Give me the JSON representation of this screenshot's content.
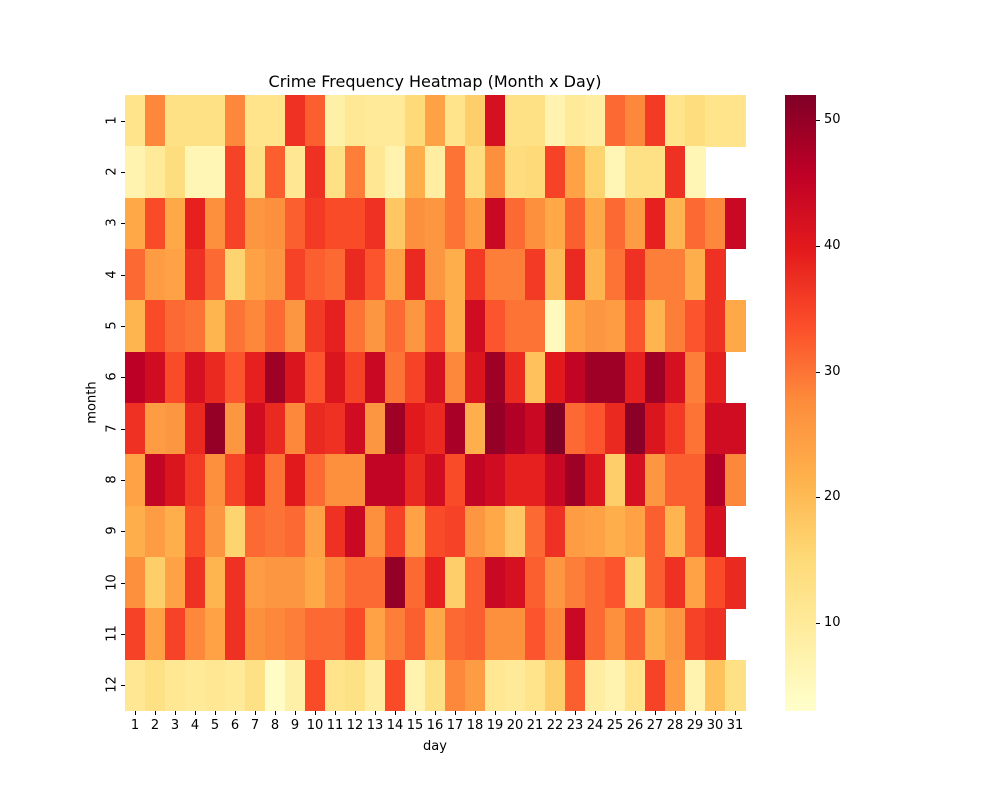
{
  "chart_data": {
    "type": "heatmap",
    "title": "Crime Frequency Heatmap (Month x Day)",
    "xlabel": "day",
    "ylabel": "month",
    "x_categories": [
      "1",
      "2",
      "3",
      "4",
      "5",
      "6",
      "7",
      "8",
      "9",
      "10",
      "11",
      "12",
      "13",
      "14",
      "15",
      "16",
      "17",
      "18",
      "19",
      "20",
      "21",
      "22",
      "23",
      "24",
      "25",
      "26",
      "27",
      "28",
      "29",
      "30",
      "31"
    ],
    "y_categories": [
      "1",
      "2",
      "3",
      "4",
      "5",
      "6",
      "7",
      "8",
      "9",
      "10",
      "11",
      "12"
    ],
    "colormap": "YlOrRd",
    "vmin": 3,
    "vmax": 52,
    "colorbar_ticks": [
      10,
      20,
      30,
      40,
      50
    ],
    "values": [
      [
        12,
        28,
        13,
        13,
        13,
        28,
        12,
        12,
        37,
        32,
        8,
        11,
        10,
        10,
        15,
        24,
        12,
        17,
        42,
        13,
        13,
        7,
        10,
        9,
        31,
        28,
        36,
        12,
        14,
        12,
        12
      ],
      [
        7,
        10,
        14,
        6,
        6,
        35,
        13,
        32,
        11,
        37,
        13,
        29,
        11,
        7,
        22,
        9,
        30,
        14,
        27,
        14,
        15,
        35,
        24,
        16,
        6,
        13,
        13,
        37,
        6,
        null,
        null
      ],
      [
        23,
        34,
        23,
        39,
        27,
        35,
        26,
        27,
        32,
        36,
        34,
        34,
        37,
        18,
        27,
        26,
        30,
        25,
        44,
        31,
        27,
        23,
        32,
        23,
        31,
        25,
        39,
        21,
        31,
        28,
        44
      ],
      [
        31,
        25,
        24,
        37,
        31,
        16,
        24,
        26,
        35,
        32,
        31,
        38,
        33,
        24,
        38,
        26,
        22,
        36,
        29,
        29,
        36,
        20,
        38,
        21,
        30,
        37,
        29,
        29,
        22,
        37,
        null
      ],
      [
        21,
        34,
        31,
        30,
        21,
        30,
        28,
        31,
        26,
        36,
        39,
        30,
        26,
        31,
        26,
        33,
        22,
        43,
        33,
        30,
        30,
        5,
        24,
        26,
        25,
        33,
        21,
        29,
        33,
        37,
        23
      ],
      [
        46,
        43,
        34,
        42,
        38,
        33,
        39,
        49,
        41,
        33,
        41,
        35,
        44,
        30,
        35,
        42,
        28,
        41,
        49,
        38,
        19,
        40,
        45,
        49,
        49,
        39,
        49,
        42,
        29,
        39,
        null
      ],
      [
        37,
        25,
        26,
        38,
        50,
        26,
        43,
        38,
        28,
        38,
        37,
        43,
        26,
        49,
        40,
        38,
        48,
        22,
        50,
        47,
        44,
        52,
        31,
        33,
        38,
        51,
        41,
        36,
        30,
        43,
        43
      ],
      [
        24,
        45,
        41,
        36,
        27,
        35,
        40,
        30,
        40,
        31,
        27,
        27,
        45,
        45,
        38,
        43,
        34,
        45,
        43,
        39,
        39,
        44,
        49,
        41,
        17,
        42,
        26,
        32,
        32,
        47,
        28
      ],
      [
        22,
        25,
        22,
        34,
        26,
        16,
        31,
        30,
        31,
        24,
        37,
        44,
        27,
        35,
        24,
        34,
        35,
        26,
        23,
        18,
        31,
        37,
        25,
        24,
        22,
        24,
        32,
        21,
        32,
        42,
        null
      ],
      [
        27,
        17,
        24,
        37,
        21,
        37,
        25,
        26,
        26,
        23,
        28,
        31,
        31,
        50,
        31,
        39,
        17,
        32,
        44,
        42,
        32,
        26,
        29,
        31,
        33,
        16,
        32,
        37,
        24,
        34,
        38
      ],
      [
        35,
        24,
        35,
        28,
        24,
        37,
        27,
        28,
        29,
        31,
        31,
        34,
        24,
        29,
        32,
        23,
        31,
        32,
        27,
        27,
        33,
        28,
        44,
        31,
        27,
        32,
        22,
        26,
        35,
        37,
        null
      ],
      [
        11,
        13,
        11,
        10,
        11,
        10,
        13,
        4,
        8,
        34,
        12,
        13,
        9,
        34,
        7,
        13,
        28,
        25,
        11,
        10,
        12,
        17,
        32,
        9,
        7,
        12,
        35,
        25,
        7,
        19,
        13
      ]
    ]
  },
  "labels": {
    "title": "Crime Frequency Heatmap (Month x Day)",
    "xlabel": "day",
    "ylabel": "month",
    "colorbar": [
      "10",
      "20",
      "30",
      "40",
      "50"
    ]
  }
}
